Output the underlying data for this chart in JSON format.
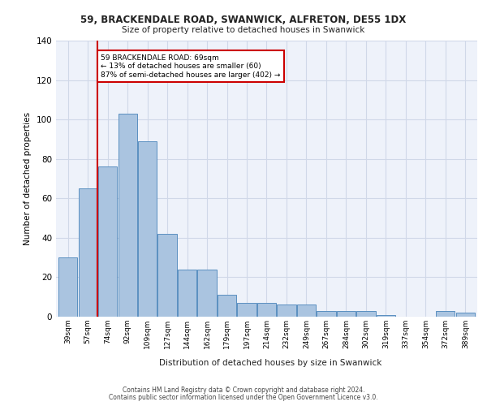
{
  "title1": "59, BRACKENDALE ROAD, SWANWICK, ALFRETON, DE55 1DX",
  "title2": "Size of property relative to detached houses in Swanwick",
  "xlabel": "Distribution of detached houses by size in Swanwick",
  "ylabel": "Number of detached properties",
  "categories": [
    "39sqm",
    "57sqm",
    "74sqm",
    "92sqm",
    "109sqm",
    "127sqm",
    "144sqm",
    "162sqm",
    "179sqm",
    "197sqm",
    "214sqm",
    "232sqm",
    "249sqm",
    "267sqm",
    "284sqm",
    "302sqm",
    "319sqm",
    "337sqm",
    "354sqm",
    "372sqm",
    "389sqm"
  ],
  "values": [
    30,
    65,
    76,
    103,
    89,
    42,
    24,
    24,
    11,
    7,
    7,
    6,
    6,
    3,
    3,
    3,
    1,
    0,
    0,
    3,
    2
  ],
  "bar_color": "#aac4e0",
  "bar_edge_color": "#5a8fc0",
  "vline_x": 1.5,
  "vline_color": "#cc0000",
  "annotation_text": "59 BRACKENDALE ROAD: 69sqm\n← 13% of detached houses are smaller (60)\n87% of semi-detached houses are larger (402) →",
  "annotation_box_color": "#ffffff",
  "annotation_box_edge": "#cc0000",
  "ylim": [
    0,
    140
  ],
  "grid_color": "#d0d8e8",
  "bg_color": "#eef2fa",
  "footer1": "Contains HM Land Registry data © Crown copyright and database right 2024.",
  "footer2": "Contains public sector information licensed under the Open Government Licence v3.0."
}
